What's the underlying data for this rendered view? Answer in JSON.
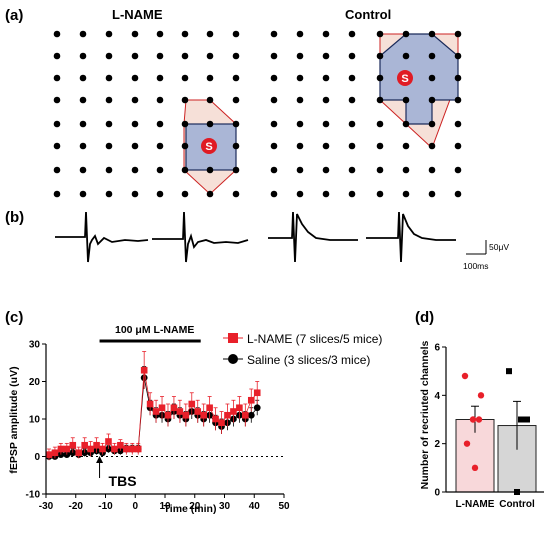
{
  "panel_labels": [
    "(a)",
    "(b)",
    "(c)",
    "(d)"
  ],
  "panel_a": {
    "left_title": "L-NAME",
    "right_title": "Control",
    "stim_label": "S",
    "grid": {
      "rows": 8,
      "cols": 8
    },
    "colors": {
      "dot": "#000000",
      "recruited_fill": "#aab6d6",
      "outline": "#cc2222",
      "extra_fill": "#f6e0d8",
      "stim": "#e01b24"
    }
  },
  "panel_b": {
    "scale_y": "50μV",
    "scale_x": "100ms"
  },
  "chart_data": [
    {
      "type": "scatter",
      "xlabel": "Time (min)",
      "ylabel": "fEPSP amplitude (uV)",
      "xlim": [
        -30,
        50
      ],
      "ylim": [
        -10,
        30
      ],
      "x_ticks": [
        "-30",
        "-20",
        "-10",
        "0",
        "10",
        "20",
        "30",
        "40",
        "50"
      ],
      "y_ticks": [
        "-10",
        "0",
        "10",
        "20",
        "30"
      ],
      "drug_label": "100 μM L-NAME",
      "drug_window": [
        -12,
        22
      ],
      "annotation": "TBS",
      "annotation_x": -12,
      "baseline": 0,
      "series": [
        {
          "name": "L-NAME (7 slices/5 mice)",
          "color": "#e8202a",
          "marker": "square",
          "x": [
            -29,
            -27,
            -25,
            -23,
            -21,
            -19,
            -17,
            -15,
            -13,
            -11,
            -9,
            -7,
            -5,
            -3,
            -1,
            1,
            3,
            5,
            7,
            9,
            11,
            13,
            15,
            17,
            19,
            21,
            23,
            25,
            27,
            29,
            31,
            33,
            35,
            37,
            39,
            41
          ],
          "y": [
            0.5,
            1,
            2,
            2,
            3,
            1,
            3,
            2,
            3,
            2,
            4,
            2,
            3,
            2,
            2,
            2,
            23,
            14,
            12,
            13,
            11,
            13,
            12,
            11,
            14,
            12,
            11,
            13,
            10,
            9,
            11,
            12,
            13,
            11,
            15,
            17
          ],
          "err": [
            1.5,
            1.5,
            1.5,
            1.5,
            2,
            1.5,
            2,
            2,
            2,
            1.5,
            2,
            1.5,
            1.5,
            1.5,
            1.5,
            1.5,
            5,
            3,
            3,
            3,
            3,
            3,
            3,
            3,
            3,
            3,
            3,
            3,
            3,
            3,
            3,
            3,
            3,
            3,
            3,
            3
          ]
        },
        {
          "name": "Saline (3 slices/3 mice)",
          "color": "#000000",
          "marker": "circle",
          "x": [
            -29,
            -27,
            -25,
            -23,
            -21,
            -19,
            -17,
            -15,
            -13,
            -11,
            -9,
            -7,
            -5,
            -3,
            -1,
            1,
            3,
            5,
            7,
            9,
            11,
            13,
            15,
            17,
            19,
            21,
            23,
            25,
            27,
            29,
            31,
            33,
            35,
            37,
            39,
            41
          ],
          "y": [
            0,
            0,
            0.5,
            0.5,
            1,
            0.5,
            1,
            1,
            1.5,
            1,
            2,
            1.5,
            1.5,
            2,
            2,
            2,
            21,
            13,
            11,
            11,
            10,
            12,
            11,
            10,
            12,
            11,
            10,
            11,
            9,
            8,
            9,
            10,
            11,
            10,
            11,
            13
          ],
          "err": [
            0.5,
            0.5,
            0.8,
            0.8,
            1,
            0.8,
            1,
            1,
            1,
            1,
            1,
            1,
            1,
            1,
            1,
            1,
            3,
            2,
            2,
            2,
            2,
            2,
            2,
            2,
            2,
            2,
            2,
            2,
            2,
            2,
            2,
            2,
            2,
            2,
            2,
            2
          ]
        }
      ]
    },
    {
      "type": "bar",
      "ylabel": "Number of recriuted channels",
      "categories": [
        "L-NAME",
        "Control"
      ],
      "ylim": [
        0,
        6
      ],
      "y_ticks": [
        "0",
        "2",
        "4",
        "6"
      ],
      "values": [
        3.0,
        2.75
      ],
      "errors": [
        0.55,
        1.0
      ],
      "bar_colors": [
        "#f8d8da",
        "#d6d6d6"
      ],
      "points": [
        {
          "category": "L-NAME",
          "values": [
            2,
            4,
            3,
            4.8,
            1,
            3
          ],
          "color": "#e8202a",
          "marker": "circle"
        },
        {
          "category": "Control",
          "values": [
            5,
            3,
            3,
            0
          ],
          "color": "#000000",
          "marker": "square"
        }
      ]
    }
  ]
}
